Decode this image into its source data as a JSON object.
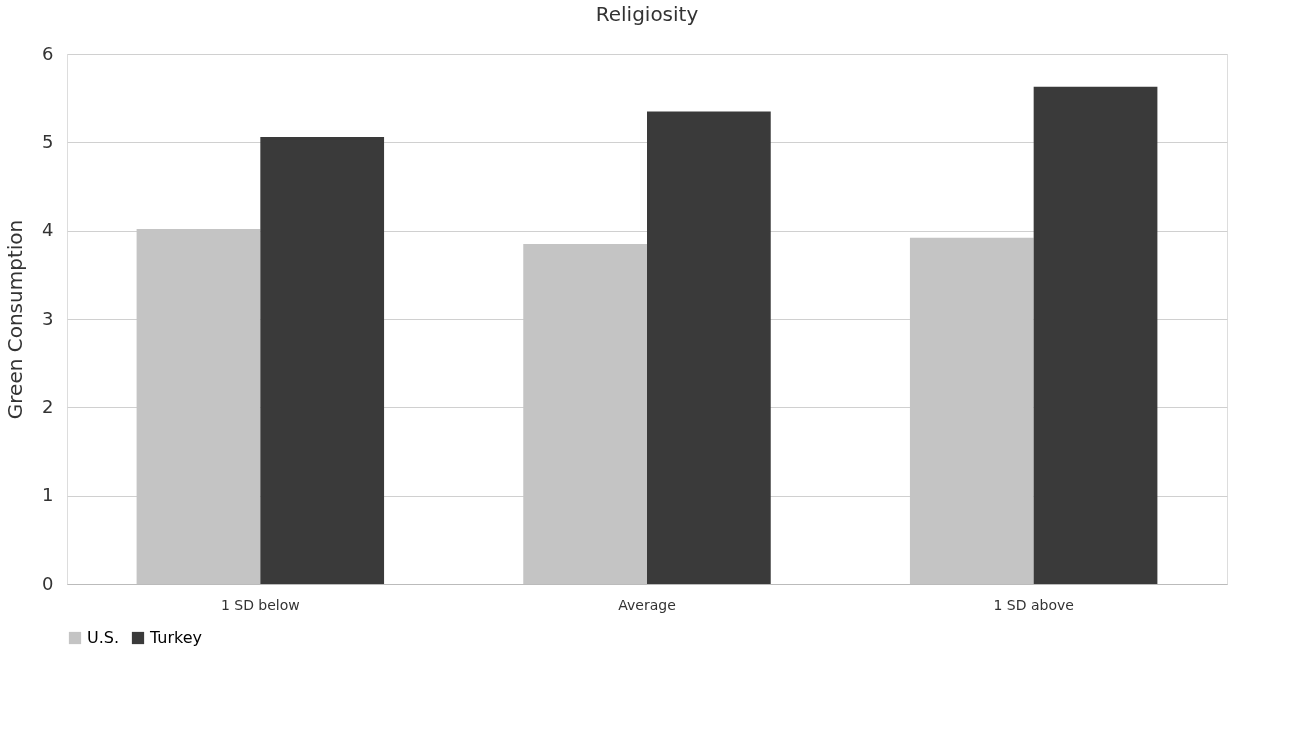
{
  "chart_data": {
    "type": "bar",
    "title": "Religiosity",
    "ylabel": "Green Consumption",
    "categories": [
      "1 SD below",
      "Average",
      "1 SD above"
    ],
    "series": [
      {
        "name": "U.S.",
        "color": "#c4c4c4",
        "values": [
          4.02,
          3.85,
          3.92
        ]
      },
      {
        "name": "Turkey",
        "color": "#3a3a3a",
        "values": [
          5.06,
          5.35,
          5.63
        ]
      }
    ],
    "ylim": [
      0,
      6
    ],
    "yticks": [
      0,
      1,
      2,
      3,
      4,
      5,
      6
    ],
    "grid": "y",
    "legend": "bottom"
  }
}
